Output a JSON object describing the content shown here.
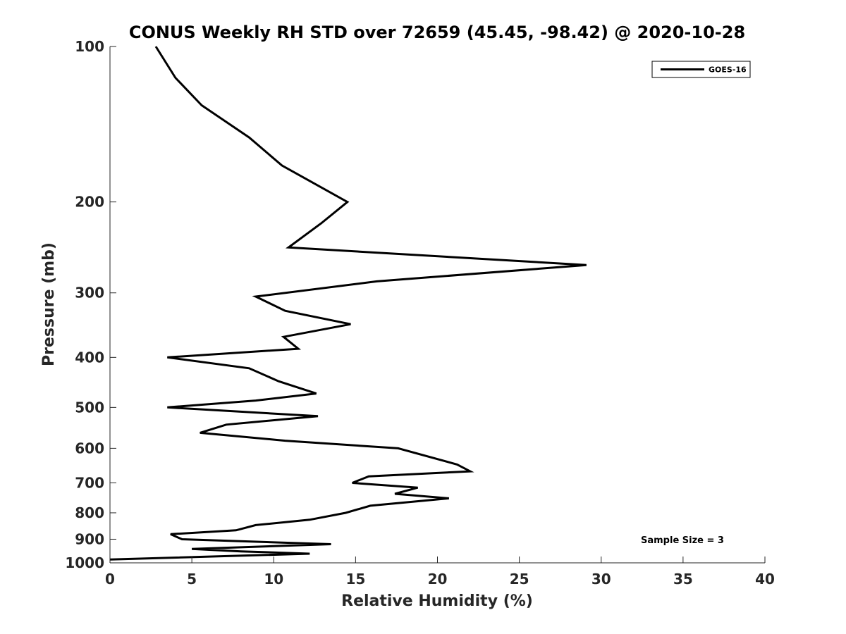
{
  "chart_data": {
    "type": "line",
    "title": "CONUS Weekly RH STD over 72659 (45.45, -98.42) @ 2020-10-28",
    "xlabel": "Relative Humidity (%)",
    "ylabel": "Pressure (mb)",
    "xlim": [
      0,
      40
    ],
    "ylim": [
      100,
      1000
    ],
    "yscale": "log",
    "y_reversed": true,
    "grid": false,
    "legend_position": "top-right",
    "x_ticks": [
      0,
      5,
      10,
      15,
      20,
      25,
      30,
      35,
      40
    ],
    "x_tick_labels": [
      "0",
      "5",
      "10",
      "15",
      "20",
      "25",
      "30",
      "35",
      "40"
    ],
    "y_ticks": [
      100,
      200,
      300,
      400,
      500,
      600,
      700,
      800,
      900,
      1000
    ],
    "y_tick_labels": [
      "100",
      "200",
      "300",
      "400",
      "500",
      "600",
      "700",
      "800",
      "900",
      "1000"
    ],
    "series": [
      {
        "name": "GOES-16",
        "color": "#000000",
        "x": [
          2.8,
          4.0,
          5.6,
          8.5,
          10.5,
          14.5,
          12.9,
          10.9,
          29.1,
          16.3,
          8.9,
          10.7,
          14.7,
          10.6,
          11.5,
          3.5,
          8.5,
          10.3,
          12.6,
          8.9,
          3.5,
          12.7,
          7.1,
          5.5,
          10.7,
          17.6,
          21.2,
          22.0,
          15.8,
          14.8,
          18.8,
          17.4,
          20.7,
          15.9,
          14.4,
          12.2,
          8.9,
          7.7,
          3.7,
          4.4,
          13.5,
          5.0,
          8.0,
          12.2,
          0.0
        ],
        "y": [
          100,
          115,
          130,
          150,
          170,
          200,
          220,
          245,
          265,
          285,
          305,
          325,
          345,
          365,
          385,
          400,
          420,
          445,
          470,
          485,
          500,
          520,
          540,
          560,
          580,
          600,
          645,
          665,
          680,
          700,
          715,
          735,
          750,
          775,
          800,
          825,
          845,
          865,
          880,
          900,
          920,
          940,
          950,
          960,
          985
        ]
      }
    ],
    "annotations": [
      "Sample Size = 3"
    ]
  }
}
